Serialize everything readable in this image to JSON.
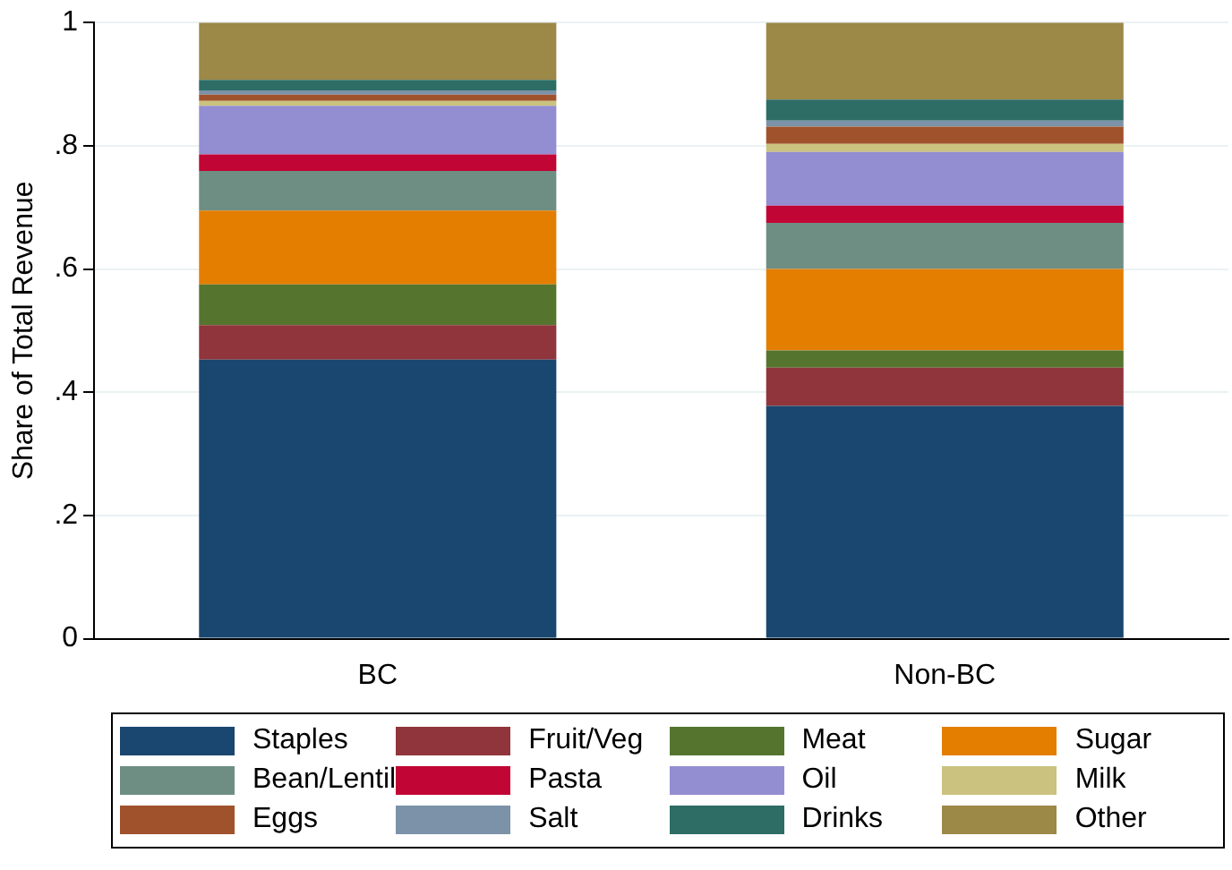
{
  "chart_data": {
    "type": "bar",
    "stacked": true,
    "ylabel": "Share of Total Revenue",
    "categories": [
      "BC",
      "Non-BC"
    ],
    "series": [
      {
        "name": "Staples",
        "color": "#1a476f",
        "values": [
          0.453,
          0.378
        ]
      },
      {
        "name": "Fruit/Veg",
        "color": "#90353b",
        "values": [
          0.056,
          0.062
        ]
      },
      {
        "name": "Meat",
        "color": "#55752f",
        "values": [
          0.066,
          0.028
        ]
      },
      {
        "name": "Sugar",
        "color": "#e37e00",
        "values": [
          0.12,
          0.132
        ]
      },
      {
        "name": "Bean/Lentil",
        "color": "#6e8e84",
        "values": [
          0.064,
          0.075
        ]
      },
      {
        "name": "Pasta",
        "color": "#c10534",
        "values": [
          0.027,
          0.028
        ]
      },
      {
        "name": "Oil",
        "color": "#938dd2",
        "values": [
          0.079,
          0.087
        ]
      },
      {
        "name": "Milk",
        "color": "#cac27e",
        "values": [
          0.008,
          0.013
        ]
      },
      {
        "name": "Eggs",
        "color": "#a0522d",
        "values": [
          0.01,
          0.028
        ]
      },
      {
        "name": "Salt",
        "color": "#7b92a8",
        "values": [
          0.007,
          0.01
        ]
      },
      {
        "name": "Drinks",
        "color": "#2d6d66",
        "values": [
          0.017,
          0.034
        ]
      },
      {
        "name": "Other",
        "color": "#9c8847",
        "values": [
          0.093,
          0.125
        ]
      }
    ],
    "ylim": [
      0,
      1
    ],
    "yticks": [
      0,
      {
        "value": 0.2,
        "label": ".2"
      },
      {
        "value": 0.4,
        "label": ".4"
      },
      {
        "value": 0.6,
        "label": ".6"
      },
      {
        "value": 0.8,
        "label": ".8"
      },
      1
    ],
    "grid": "y",
    "legend": "bottom"
  }
}
